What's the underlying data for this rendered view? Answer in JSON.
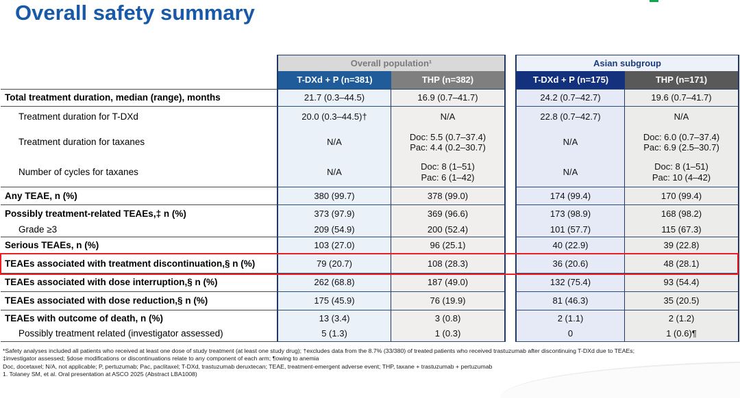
{
  "page": {
    "title": "Overall safety summary"
  },
  "colors": {
    "title_blue": "#1859A8",
    "header_blue": "#1F5C99",
    "header_navy": "#14317E",
    "header_gray": "#7F7F7F",
    "header_dark_gray": "#595959",
    "highlight_red": "#EE1C25",
    "logo_green": "#0DA94E"
  },
  "table": {
    "groups": [
      {
        "label": "Overall population¹"
      },
      {
        "label": "Asian subgroup"
      }
    ],
    "columns": [
      {
        "label": "T-DXd + P (n=381)"
      },
      {
        "label": "THP (n=382)"
      },
      {
        "label": "T-DXd + P (n=175)"
      },
      {
        "label": "THP (n=171)"
      }
    ],
    "rows": [
      {
        "label": "Total treatment duration, median (range), months",
        "cells": [
          "21.7 (0.3–44.5)",
          "16.9 (0.7–41.7)",
          "24.2 (0.7–42.7)",
          "19.6 (0.7–41.7)"
        ]
      },
      {
        "label": "Treatment duration for T-DXd",
        "cells": [
          "20.0 (0.3–44.5)†",
          "N/A",
          "22.8 (0.7–42.7)",
          "N/A"
        ]
      },
      {
        "label": "Treatment duration for taxanes",
        "cells": [
          "N/A",
          "Doc: 5.5 (0.7–37.4)\nPac: 4.4 (0.2–30.7)",
          "N/A",
          "Doc: 6.0 (0.7–37.4)\nPac: 6.9 (2.5–30.7)"
        ]
      },
      {
        "label": "Number of cycles for taxanes",
        "cells": [
          "N/A",
          "Doc: 8 (1–51)\nPac: 6 (1–42)",
          "N/A",
          "Doc: 8 (1–51)\nPac: 10 (4–42)"
        ]
      },
      {
        "label": "Any TEAE, n (%)",
        "cells": [
          "380 (99.7)",
          "378 (99.0)",
          "174 (99.4)",
          "170 (99.4)"
        ]
      },
      {
        "label": "Possibly treatment-related TEAEs,‡ n (%)",
        "cells": [
          "373 (97.9)",
          "369 (96.6)",
          "173 (98.9)",
          "168 (98.2)"
        ]
      },
      {
        "label": "Grade ≥3",
        "cells": [
          "209 (54.9)",
          "200 (52.4)",
          "101 (57.7)",
          "115 (67.3)"
        ]
      },
      {
        "label": "Serious TEAEs, n (%)",
        "cells": [
          "103 (27.0)",
          "96 (25.1)",
          "40 (22.9)",
          "39 (22.8)"
        ]
      },
      {
        "label": "TEAEs associated with treatment discontinuation,§ n (%)",
        "cells": [
          "79 (20.7)",
          "108 (28.3)",
          "36 (20.6)",
          "48 (28.1)"
        ]
      },
      {
        "label": "TEAEs associated with dose interruption,§ n (%)",
        "cells": [
          "262 (68.8)",
          "187 (49.0)",
          "132 (75.4)",
          "93 (54.4)"
        ]
      },
      {
        "label": "TEAEs associated with dose reduction,§ n (%)",
        "cells": [
          "175 (45.9)",
          "76 (19.9)",
          "81 (46.3)",
          "35 (20.5)"
        ]
      },
      {
        "label": "TEAEs with outcome of death, n (%)",
        "cells": [
          "13 (3.4)",
          "3 (0.8)",
          "2 (1.1)",
          "2 (1.2)"
        ]
      },
      {
        "label": "Possibly treatment related (investigator assessed)",
        "cells": [
          "5 (1.3)",
          "1 (0.3)",
          "0",
          "1 (0.6)¶"
        ]
      }
    ]
  },
  "footnotes": {
    "line1": "*Safety analyses included all patients who received at least one dose of study treatment (at least one study drug); †excludes data from the 8.7% (33/380) of treated patients who received trastuzumab after discontinuing T-DXd due to TEAEs;",
    "line2": "‡investigator assessed; §dose modifications or discontinuations relate to any component of each arm; ¶owing to anemia",
    "line3": "Doc, docetaxel; N/A, not applicable; P, pertuzumab; Pac, paclitaxel; T-DXd, trastuzumab deruxtecan; TEAE, treatment-emergent adverse event; THP, taxane + trastuzumab + pertuzumab",
    "line4": "1. Tolaney SM, et al. Oral presentation at ASCO 2025 (Abstract LBA1008)"
  }
}
